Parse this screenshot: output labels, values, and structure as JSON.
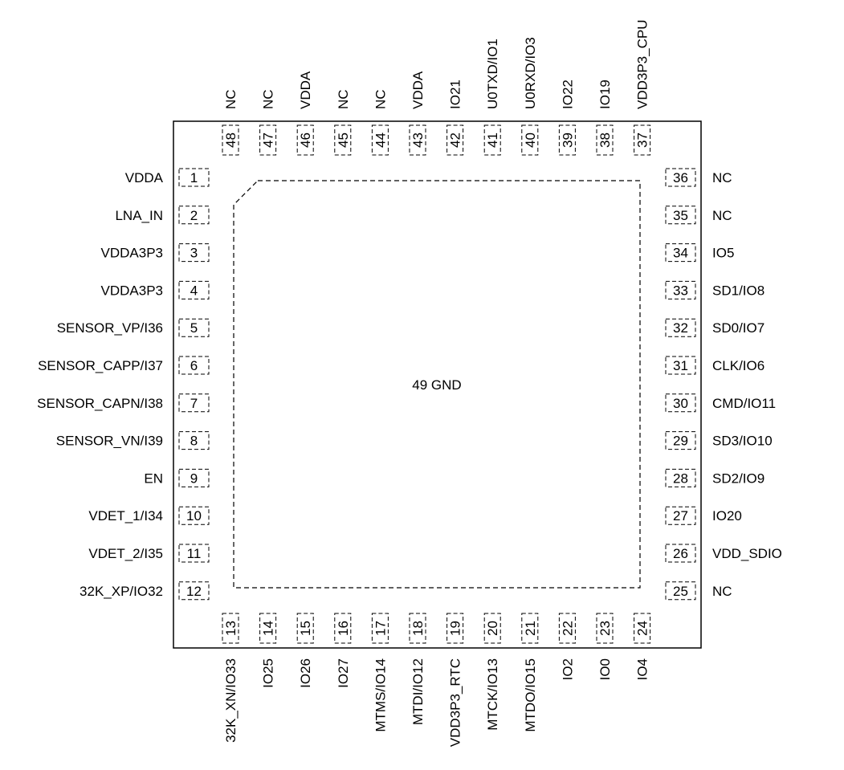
{
  "center_label": "49 GND",
  "pins": {
    "left": [
      {
        "num": "1",
        "name": "VDDA"
      },
      {
        "num": "2",
        "name": "LNA_IN"
      },
      {
        "num": "3",
        "name": "VDDA3P3"
      },
      {
        "num": "4",
        "name": "VDDA3P3"
      },
      {
        "num": "5",
        "name": "SENSOR_VP/I36"
      },
      {
        "num": "6",
        "name": "SENSOR_CAPP/I37"
      },
      {
        "num": "7",
        "name": "SENSOR_CAPN/I38"
      },
      {
        "num": "8",
        "name": "SENSOR_VN/I39"
      },
      {
        "num": "9",
        "name": "EN"
      },
      {
        "num": "10",
        "name": "VDET_1/I34"
      },
      {
        "num": "11",
        "name": "VDET_2/I35"
      },
      {
        "num": "12",
        "name": "32K_XP/IO32"
      }
    ],
    "bottom": [
      {
        "num": "13",
        "name": "32K_XN/IO33"
      },
      {
        "num": "14",
        "name": "IO25"
      },
      {
        "num": "15",
        "name": "IO26"
      },
      {
        "num": "16",
        "name": "IO27"
      },
      {
        "num": "17",
        "name": "MTMS/IO14"
      },
      {
        "num": "18",
        "name": "MTDI/IO12"
      },
      {
        "num": "19",
        "name": "VDD3P3_RTC"
      },
      {
        "num": "20",
        "name": "MTCK/IO13"
      },
      {
        "num": "21",
        "name": "MTDO/IO15"
      },
      {
        "num": "22",
        "name": "IO2"
      },
      {
        "num": "23",
        "name": "IO0"
      },
      {
        "num": "24",
        "name": "IO4"
      }
    ],
    "right": [
      {
        "num": "36",
        "name": "NC"
      },
      {
        "num": "35",
        "name": "NC"
      },
      {
        "num": "34",
        "name": "IO5"
      },
      {
        "num": "33",
        "name": "SD1/IO8"
      },
      {
        "num": "32",
        "name": "SD0/IO7"
      },
      {
        "num": "31",
        "name": "CLK/IO6"
      },
      {
        "num": "30",
        "name": "CMD/IO11"
      },
      {
        "num": "29",
        "name": "SD3/IO10"
      },
      {
        "num": "28",
        "name": "SD2/IO9"
      },
      {
        "num": "27",
        "name": "IO20"
      },
      {
        "num": "26",
        "name": "VDD_SDIO"
      },
      {
        "num": "25",
        "name": "NC"
      }
    ],
    "top": [
      {
        "num": "48",
        "name": "NC"
      },
      {
        "num": "47",
        "name": "NC"
      },
      {
        "num": "46",
        "name": "VDDA"
      },
      {
        "num": "45",
        "name": "NC"
      },
      {
        "num": "44",
        "name": "NC"
      },
      {
        "num": "43",
        "name": "VDDA"
      },
      {
        "num": "42",
        "name": "IO21"
      },
      {
        "num": "41",
        "name": "U0TXD/IO1"
      },
      {
        "num": "40",
        "name": "U0RXD/IO3"
      },
      {
        "num": "39",
        "name": "IO22"
      },
      {
        "num": "38",
        "name": "IO19"
      },
      {
        "num": "37",
        "name": "VDD3P3_CPU"
      }
    ]
  }
}
